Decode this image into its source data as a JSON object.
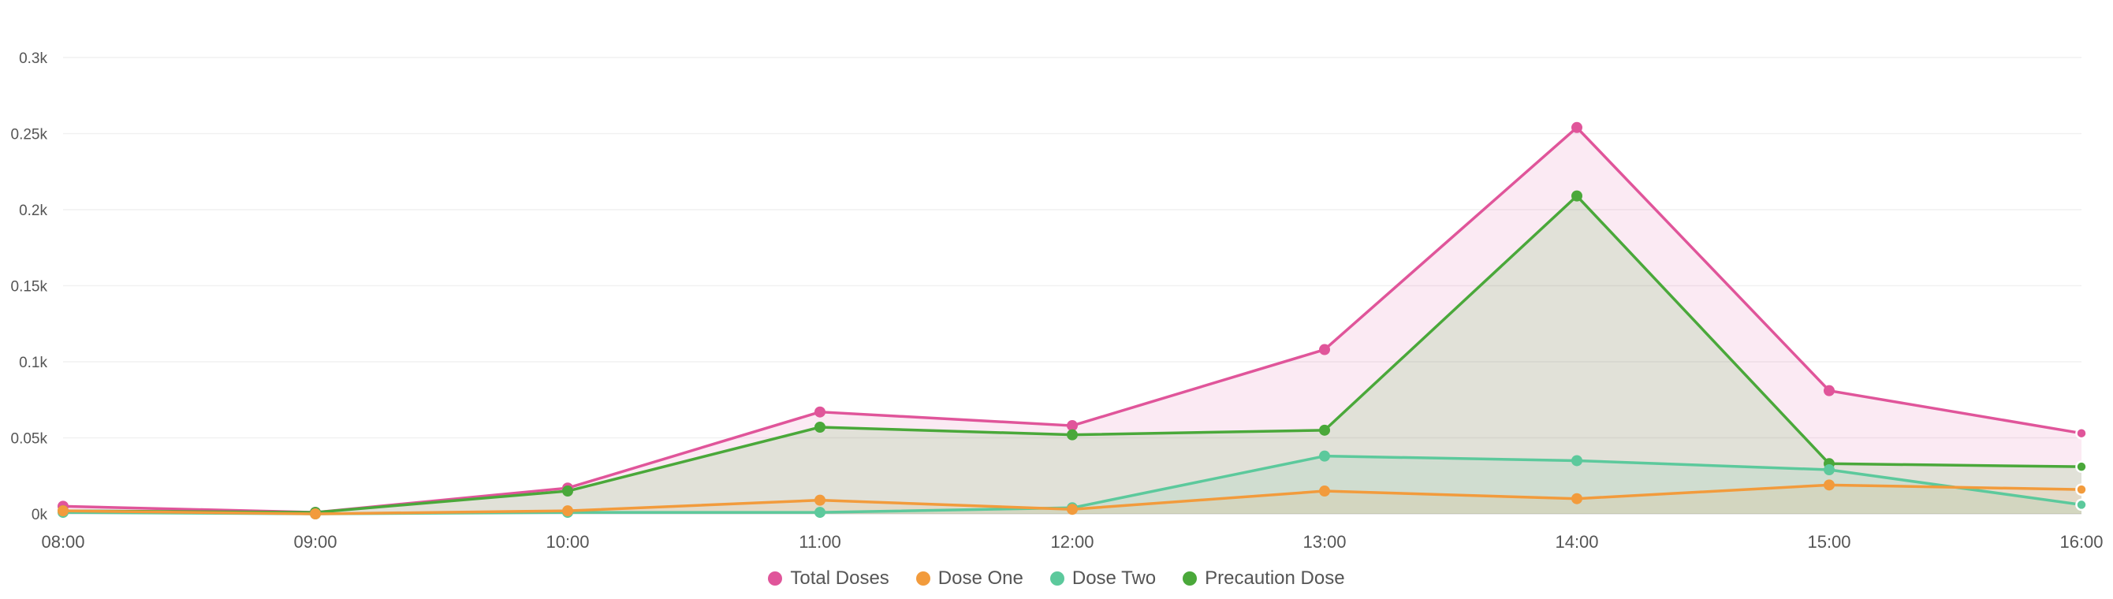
{
  "chart_data": {
    "type": "area",
    "categories": [
      "08:00",
      "09:00",
      "10:00",
      "11:00",
      "12:00",
      "13:00",
      "14:00",
      "15:00",
      "16:00"
    ],
    "y_ticks": [
      "0k",
      "0.05k",
      "0.1k",
      "0.15k",
      "0.2k",
      "0.25k",
      "0.3k"
    ],
    "ylim": [
      0,
      300
    ],
    "grid": true,
    "legend_position": "bottom-center",
    "series": [
      {
        "name": "Total Doses",
        "color": "#e0559a",
        "values": [
          5,
          1,
          17,
          67,
          58,
          108,
          254,
          81,
          53
        ]
      },
      {
        "name": "Dose One",
        "color": "#f29b3c",
        "values": [
          2,
          0,
          2,
          9,
          3,
          15,
          10,
          19,
          16
        ]
      },
      {
        "name": "Dose Two",
        "color": "#5cc99c",
        "values": [
          1,
          0,
          1,
          1,
          4,
          38,
          35,
          29,
          6
        ]
      },
      {
        "name": "Precaution Dose",
        "color": "#4aa83a",
        "values": [
          2,
          1,
          15,
          57,
          52,
          55,
          209,
          33,
          31
        ]
      }
    ]
  }
}
